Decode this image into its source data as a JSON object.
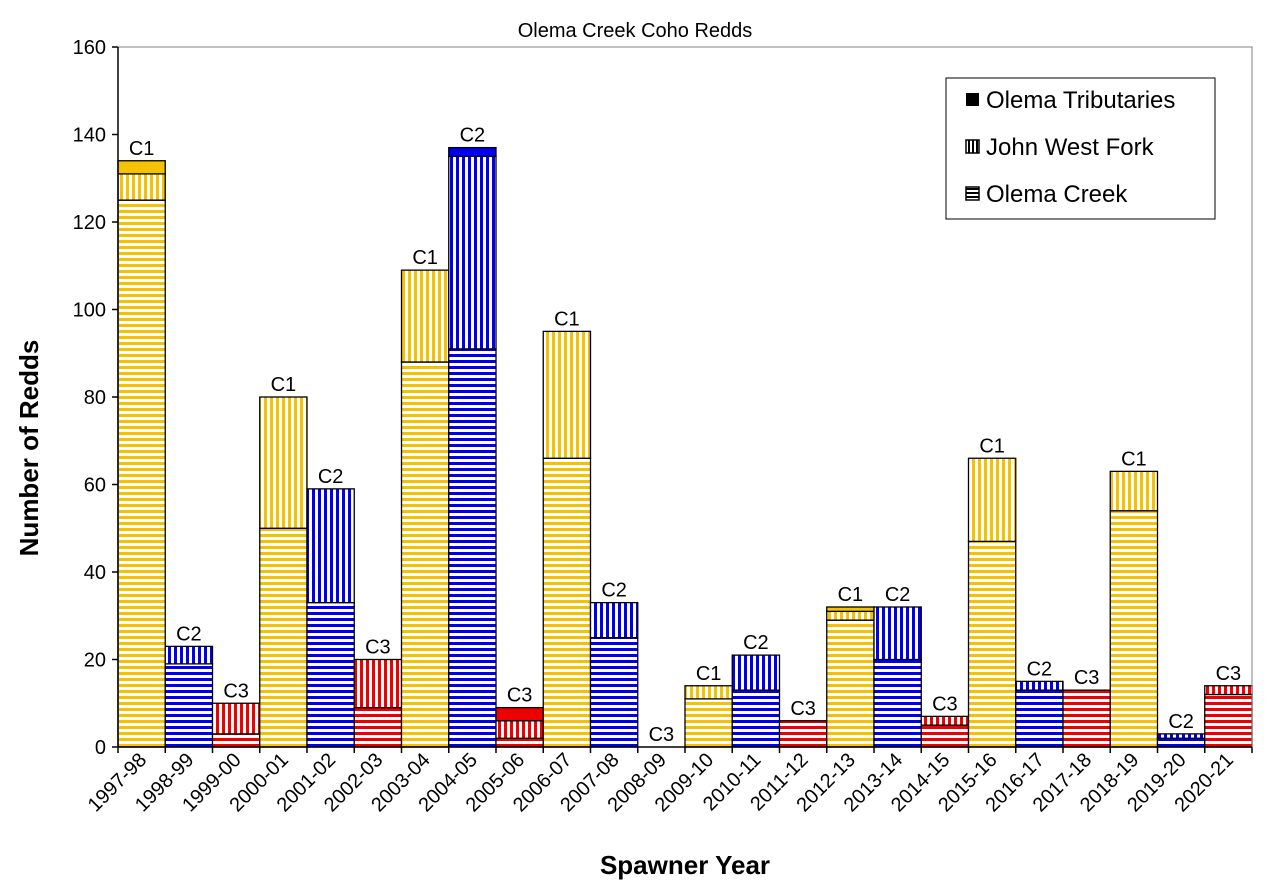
{
  "chart_data": {
    "type": "bar",
    "stacked": true,
    "title": "Olema Creek Coho Redds",
    "xlabel": "Spawner Year",
    "ylabel": "Number of Redds",
    "ylim": [
      0,
      160
    ],
    "yticks": [
      0,
      20,
      40,
      60,
      80,
      100,
      120,
      140,
      160
    ],
    "legend_position": "top-right",
    "categories": [
      "1997-98",
      "1998-99",
      "1999-00",
      "2000-01",
      "2001-02",
      "2002-03",
      "2003-04",
      "2004-05",
      "2005-06",
      "2006-07",
      "2007-08",
      "2008-09",
      "2009-10",
      "2010-11",
      "2011-12",
      "2012-13",
      "2013-14",
      "2014-15",
      "2015-16",
      "2016-17",
      "2017-18",
      "2018-19",
      "2019-20",
      "2020-21"
    ],
    "cohorts": [
      "C1",
      "C2",
      "C3",
      "C1",
      "C2",
      "C3",
      "C1",
      "C2",
      "C3",
      "C1",
      "C2",
      "C3",
      "C1",
      "C2",
      "C3",
      "C1",
      "C2",
      "C3",
      "C1",
      "C2",
      "C3",
      "C1",
      "C2",
      "C3"
    ],
    "cohort_colors": {
      "C1": "#F5C200",
      "C2": "#0000EE",
      "C3": "#EE0000"
    },
    "series": [
      {
        "name": "Olema Creek",
        "pattern": "horizontal-stripes",
        "values": [
          125,
          19,
          3,
          50,
          33,
          9,
          88,
          91,
          2,
          66,
          25,
          0,
          11,
          13,
          6,
          29,
          20,
          5,
          47,
          13,
          13,
          54,
          2,
          12
        ]
      },
      {
        "name": "John West Fork",
        "pattern": "vertical-stripes",
        "values": [
          6,
          4,
          7,
          30,
          26,
          11,
          21,
          44,
          4,
          29,
          8,
          0,
          3,
          8,
          0,
          2,
          12,
          2,
          19,
          2,
          0,
          9,
          1,
          2
        ]
      },
      {
        "name": "Olema Tributaries",
        "pattern": "solid",
        "values": [
          3,
          0,
          0,
          0,
          0,
          0,
          0,
          2,
          3,
          0,
          0,
          0,
          0,
          0,
          0,
          1,
          0,
          0,
          0,
          0,
          0,
          0,
          0,
          0
        ]
      }
    ],
    "legend": [
      "Olema Tributaries",
      "John West Fork",
      "Olema Creek"
    ]
  }
}
